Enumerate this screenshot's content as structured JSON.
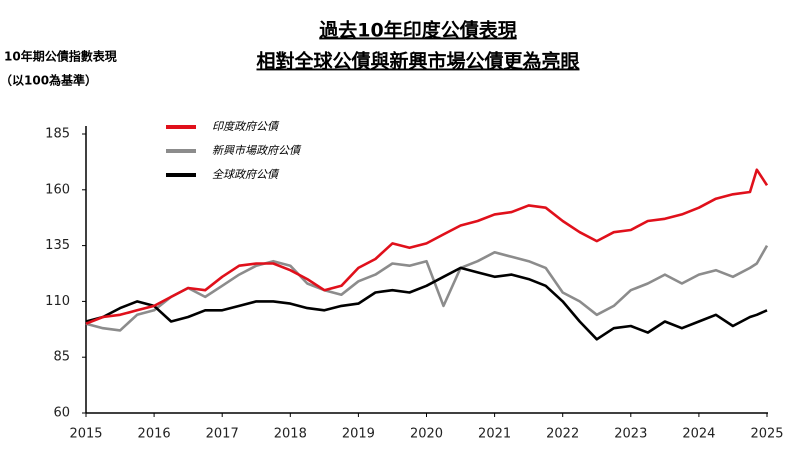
{
  "chart_data": {
    "type": "line",
    "title": "過去10年印度公債表現",
    "subtitle": "相對全球公債與新興市場公債更為亮眼",
    "ylabel": "10年期公債指數表現",
    "ylabel_note": "（以100為基準）",
    "x": [
      2015,
      2015.25,
      2015.5,
      2015.75,
      2016,
      2016.25,
      2016.5,
      2016.75,
      2017,
      2017.25,
      2017.5,
      2017.75,
      2018,
      2018.25,
      2018.5,
      2018.75,
      2019,
      2019.25,
      2019.5,
      2019.75,
      2020,
      2020.25,
      2020.5,
      2020.75,
      2021,
      2021.25,
      2021.5,
      2021.75,
      2022,
      2022.25,
      2022.5,
      2022.75,
      2023,
      2023.25,
      2023.5,
      2023.75,
      2024,
      2024.25,
      2024.5,
      2024.75,
      2024.85,
      2025
    ],
    "series": [
      {
        "name": "印度政府公債",
        "color": "#e0101b",
        "values": [
          100,
          103,
          104,
          106,
          108,
          112,
          116,
          115,
          121,
          126,
          127,
          127,
          124,
          120,
          115,
          117,
          125,
          129,
          136,
          134,
          136,
          140,
          144,
          146,
          149,
          150,
          153,
          152,
          146,
          141,
          137,
          141,
          142,
          146,
          147,
          149,
          152,
          156,
          158,
          159,
          169,
          162
        ]
      },
      {
        "name": "新興市場政府公債",
        "color": "#8c8c8c",
        "values": [
          100,
          98,
          97,
          104,
          106,
          112,
          116,
          112,
          117,
          122,
          126,
          128,
          126,
          118,
          115,
          113,
          119,
          122,
          127,
          126,
          128,
          108,
          125,
          128,
          132,
          130,
          128,
          125,
          114,
          110,
          104,
          108,
          115,
          118,
          122,
          118,
          122,
          124,
          121,
          125,
          127,
          135
        ]
      },
      {
        "name": "全球政府公債",
        "color": "#000000",
        "values": [
          101,
          103,
          107,
          110,
          108,
          101,
          103,
          106,
          106,
          108,
          110,
          110,
          109,
          107,
          106,
          108,
          109,
          114,
          115,
          114,
          117,
          121,
          125,
          123,
          121,
          122,
          120,
          117,
          110,
          101,
          93,
          98,
          99,
          96,
          101,
          98,
          101,
          104,
          99,
          103,
          104,
          106
        ]
      }
    ],
    "xlim": [
      2015,
      2025
    ],
    "xticks": [
      2015,
      2016,
      2017,
      2018,
      2019,
      2020,
      2021,
      2022,
      2023,
      2024,
      2025
    ],
    "ylim": [
      60,
      185
    ],
    "yticks": [
      60,
      85,
      110,
      135,
      160,
      185
    ]
  }
}
